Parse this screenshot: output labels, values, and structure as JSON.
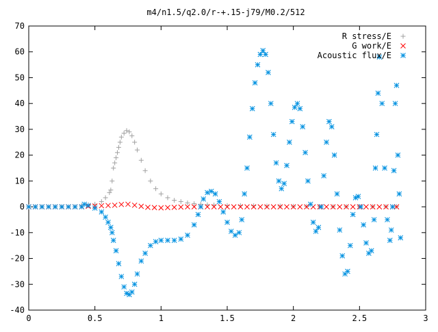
{
  "chart_data": {
    "type": "scatter",
    "title": "m4/n1.5/q2.0/r-+.15-j79/M0.2/512",
    "xlabel": "",
    "ylabel": "",
    "xlim": [
      0,
      3
    ],
    "ylim": [
      -40,
      70
    ],
    "x_ticks": [
      "0",
      "0.5",
      "1",
      "1.5",
      "2",
      "2.5",
      "3"
    ],
    "y_ticks": [
      "70",
      "60",
      "50",
      "40",
      "30",
      "20",
      "10",
      "0",
      "-10",
      "-20",
      "-30",
      "-40"
    ],
    "grid": false,
    "legend_position": "top-right",
    "series": [
      {
        "name": "R stress/E",
        "color": "#a0a0a0",
        "marker": "plus",
        "points": [
          [
            0.0,
            0
          ],
          [
            0.05,
            0
          ],
          [
            0.1,
            0
          ],
          [
            0.15,
            0
          ],
          [
            0.2,
            0
          ],
          [
            0.25,
            0
          ],
          [
            0.3,
            0
          ],
          [
            0.35,
            0
          ],
          [
            0.4,
            0.5
          ],
          [
            0.45,
            0.8
          ],
          [
            0.5,
            1.0
          ],
          [
            0.55,
            2.0
          ],
          [
            0.58,
            3.5
          ],
          [
            0.61,
            5.5
          ],
          [
            0.62,
            6.5
          ],
          [
            0.63,
            10
          ],
          [
            0.64,
            15
          ],
          [
            0.65,
            17
          ],
          [
            0.66,
            19
          ],
          [
            0.67,
            21
          ],
          [
            0.68,
            23
          ],
          [
            0.69,
            25
          ],
          [
            0.7,
            27
          ],
          [
            0.72,
            28.5
          ],
          [
            0.74,
            29.5
          ],
          [
            0.76,
            29
          ],
          [
            0.78,
            27.5
          ],
          [
            0.8,
            25
          ],
          [
            0.82,
            22
          ],
          [
            0.85,
            18
          ],
          [
            0.88,
            14
          ],
          [
            0.92,
            10
          ],
          [
            0.96,
            7
          ],
          [
            1.0,
            5
          ],
          [
            1.05,
            3.5
          ],
          [
            1.1,
            2.5
          ],
          [
            1.15,
            2
          ],
          [
            1.2,
            1.5
          ],
          [
            1.25,
            1.2
          ],
          [
            1.3,
            1
          ],
          [
            1.35,
            0.8
          ],
          [
            1.4,
            0.7
          ],
          [
            1.5,
            0.5
          ],
          [
            1.6,
            0.5
          ],
          [
            1.7,
            0.4
          ],
          [
            1.8,
            0.3
          ],
          [
            1.9,
            0.3
          ],
          [
            2.0,
            0.2
          ],
          [
            2.1,
            0.2
          ],
          [
            2.2,
            0.1
          ],
          [
            2.3,
            0.1
          ],
          [
            2.4,
            0.1
          ],
          [
            2.5,
            0.1
          ],
          [
            2.6,
            0.1
          ],
          [
            2.7,
            0.1
          ],
          [
            2.78,
            0.1
          ]
        ]
      },
      {
        "name": "G work/E",
        "color": "#ff0000",
        "marker": "cross",
        "points": [
          [
            0.0,
            0
          ],
          [
            0.05,
            0
          ],
          [
            0.1,
            0
          ],
          [
            0.15,
            0
          ],
          [
            0.2,
            0
          ],
          [
            0.25,
            0
          ],
          [
            0.3,
            0
          ],
          [
            0.35,
            0
          ],
          [
            0.4,
            0
          ],
          [
            0.45,
            0.2
          ],
          [
            0.5,
            0.3
          ],
          [
            0.55,
            0.4
          ],
          [
            0.6,
            0.5
          ],
          [
            0.65,
            0.6
          ],
          [
            0.7,
            0.9
          ],
          [
            0.75,
            1.0
          ],
          [
            0.8,
            0.6
          ],
          [
            0.85,
            0.2
          ],
          [
            0.9,
            -0.2
          ],
          [
            0.95,
            -0.3
          ],
          [
            1.0,
            -0.4
          ],
          [
            1.05,
            -0.3
          ],
          [
            1.1,
            -0.2
          ],
          [
            1.15,
            -0.1
          ],
          [
            1.2,
            0
          ],
          [
            1.25,
            0
          ],
          [
            1.3,
            0
          ],
          [
            1.35,
            0
          ],
          [
            1.4,
            0
          ],
          [
            1.45,
            0
          ],
          [
            1.5,
            0
          ],
          [
            1.55,
            0
          ],
          [
            1.6,
            0
          ],
          [
            1.65,
            0
          ],
          [
            1.7,
            0
          ],
          [
            1.75,
            0
          ],
          [
            1.8,
            0
          ],
          [
            1.85,
            0
          ],
          [
            1.9,
            0
          ],
          [
            1.95,
            0
          ],
          [
            2.0,
            0
          ],
          [
            2.05,
            0
          ],
          [
            2.1,
            0
          ],
          [
            2.15,
            0
          ],
          [
            2.2,
            0
          ],
          [
            2.25,
            0
          ],
          [
            2.3,
            0
          ],
          [
            2.35,
            0
          ],
          [
            2.4,
            0
          ],
          [
            2.45,
            0
          ],
          [
            2.5,
            0
          ],
          [
            2.55,
            0
          ],
          [
            2.6,
            0
          ],
          [
            2.65,
            0
          ],
          [
            2.7,
            0
          ],
          [
            2.75,
            0
          ],
          [
            2.78,
            0
          ]
        ]
      },
      {
        "name": "Acoustic flux/E",
        "color": "#0090e0",
        "marker": "star",
        "points": [
          [
            0.0,
            0
          ],
          [
            0.05,
            0
          ],
          [
            0.1,
            0
          ],
          [
            0.15,
            0
          ],
          [
            0.2,
            0
          ],
          [
            0.25,
            0
          ],
          [
            0.3,
            0
          ],
          [
            0.35,
            0
          ],
          [
            0.4,
            0
          ],
          [
            0.42,
            1
          ],
          [
            0.45,
            0.5
          ],
          [
            0.5,
            -0.5
          ],
          [
            0.55,
            -2
          ],
          [
            0.58,
            -4
          ],
          [
            0.6,
            -6
          ],
          [
            0.62,
            -8
          ],
          [
            0.63,
            -10
          ],
          [
            0.64,
            -13
          ],
          [
            0.66,
            -17
          ],
          [
            0.68,
            -22
          ],
          [
            0.7,
            -27
          ],
          [
            0.72,
            -31
          ],
          [
            0.74,
            -33.5
          ],
          [
            0.76,
            -34
          ],
          [
            0.78,
            -33
          ],
          [
            0.8,
            -30
          ],
          [
            0.82,
            -26
          ],
          [
            0.85,
            -21
          ],
          [
            0.88,
            -18
          ],
          [
            0.92,
            -15
          ],
          [
            0.96,
            -13.5
          ],
          [
            1.0,
            -13
          ],
          [
            1.05,
            -13
          ],
          [
            1.1,
            -13
          ],
          [
            1.15,
            -12.5
          ],
          [
            1.2,
            -11
          ],
          [
            1.25,
            -7
          ],
          [
            1.28,
            -3
          ],
          [
            1.3,
            0
          ],
          [
            1.32,
            3
          ],
          [
            1.35,
            5.5
          ],
          [
            1.38,
            6
          ],
          [
            1.41,
            5
          ],
          [
            1.44,
            2
          ],
          [
            1.47,
            -2
          ],
          [
            1.5,
            -6
          ],
          [
            1.53,
            -9.5
          ],
          [
            1.56,
            -11
          ],
          [
            1.59,
            -10
          ],
          [
            1.61,
            -5
          ],
          [
            1.63,
            5
          ],
          [
            1.65,
            15
          ],
          [
            1.67,
            27
          ],
          [
            1.69,
            38
          ],
          [
            1.71,
            48
          ],
          [
            1.73,
            55
          ],
          [
            1.75,
            59
          ],
          [
            1.77,
            60.5
          ],
          [
            1.79,
            59
          ],
          [
            1.81,
            52
          ],
          [
            1.83,
            40
          ],
          [
            1.85,
            28
          ],
          [
            1.87,
            17
          ],
          [
            1.89,
            10
          ],
          [
            1.91,
            7
          ],
          [
            1.93,
            9
          ],
          [
            1.95,
            16
          ],
          [
            1.97,
            25
          ],
          [
            1.99,
            33
          ],
          [
            2.01,
            38.5
          ],
          [
            2.03,
            40
          ],
          [
            2.05,
            38
          ],
          [
            2.07,
            31
          ],
          [
            2.09,
            21
          ],
          [
            2.11,
            10
          ],
          [
            2.13,
            1
          ],
          [
            2.15,
            -6
          ],
          [
            2.17,
            -9.5
          ],
          [
            2.19,
            -8
          ],
          [
            2.21,
            0
          ],
          [
            2.23,
            12
          ],
          [
            2.25,
            25
          ],
          [
            2.27,
            33
          ],
          [
            2.29,
            31
          ],
          [
            2.31,
            20
          ],
          [
            2.33,
            5
          ],
          [
            2.35,
            -9
          ],
          [
            2.37,
            -19
          ],
          [
            2.39,
            -26
          ],
          [
            2.41,
            -25
          ],
          [
            2.43,
            -15
          ],
          [
            2.45,
            -3
          ],
          [
            2.47,
            3.5
          ],
          [
            2.49,
            4
          ],
          [
            2.51,
            0
          ],
          [
            2.53,
            -7
          ],
          [
            2.55,
            -14
          ],
          [
            2.57,
            -18
          ],
          [
            2.59,
            -17
          ],
          [
            2.61,
            -5
          ],
          [
            2.62,
            15
          ],
          [
            2.63,
            28
          ],
          [
            2.64,
            44
          ],
          [
            2.65,
            58
          ],
          [
            2.67,
            40
          ],
          [
            2.69,
            15
          ],
          [
            2.71,
            -5
          ],
          [
            2.73,
            -13
          ],
          [
            2.74,
            -9
          ],
          [
            2.75,
            0
          ],
          [
            2.76,
            14
          ],
          [
            2.77,
            40
          ],
          [
            2.78,
            47
          ],
          [
            2.79,
            20
          ],
          [
            2.8,
            5
          ],
          [
            2.81,
            -12
          ]
        ]
      }
    ]
  }
}
